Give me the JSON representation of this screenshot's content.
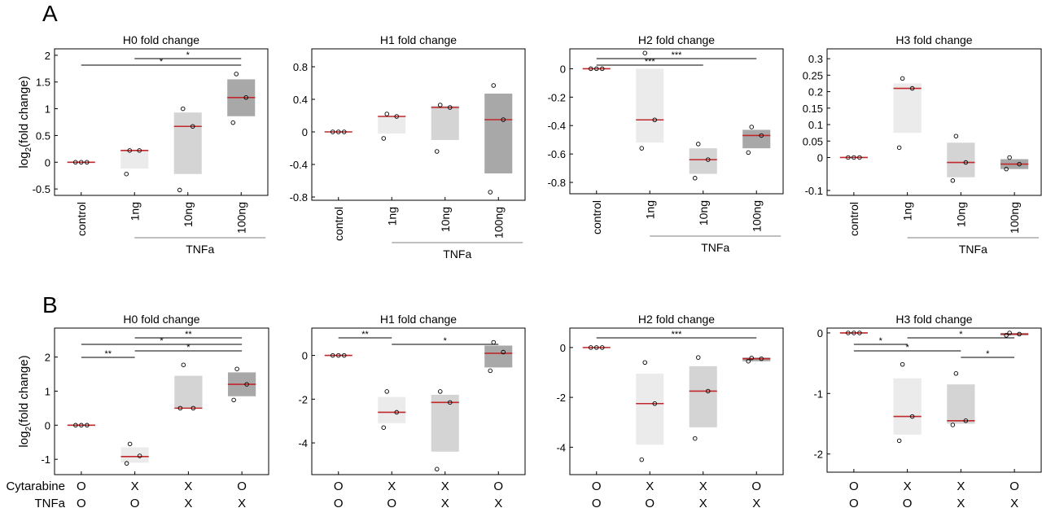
{
  "panel_labels": [
    "A",
    "B"
  ],
  "ylabel_base": "log",
  "ylabel_sub": "2",
  "ylabel_rest": "(fold change)",
  "row_a_group_label": "TNFa",
  "row_b_row_labels": [
    "Cytarabine",
    "TNFa"
  ],
  "colors": {
    "median": "#c0282b",
    "shade_light": "#ebebeb",
    "shade_mid": "#d4d4d4",
    "shade_dark": "#a8a8a8",
    "axis": "#000000"
  },
  "chart_data": [
    {
      "type": "box",
      "title": "H0 fold change",
      "ylim": [
        -0.62,
        2.12
      ],
      "ticks": [
        {
          "v": -0.5,
          "t": "-0.5"
        },
        {
          "v": 0,
          "t": "0"
        },
        {
          "v": 0.5,
          "t": "0.5"
        },
        {
          "v": 1,
          "t": "1"
        },
        {
          "v": 1.5,
          "t": "1.5"
        },
        {
          "v": 2,
          "t": "2"
        }
      ],
      "categories": [
        "control",
        "1ng",
        "10ng",
        "100ng"
      ],
      "groups": [
        {
          "box": [
            0,
            0
          ],
          "median": 0,
          "points": [
            0,
            0,
            0
          ]
        },
        {
          "box": [
            -0.12,
            0.22
          ],
          "median": 0.22,
          "points": [
            0.22,
            0.22,
            -0.22
          ]
        },
        {
          "box": [
            -0.22,
            0.93
          ],
          "median": 0.67,
          "points": [
            1.0,
            0.67,
            -0.52
          ]
        },
        {
          "box": [
            0.86,
            1.55
          ],
          "median": 1.21,
          "points": [
            1.65,
            1.21,
            0.74
          ]
        }
      ],
      "significance": [
        {
          "from": 1,
          "to": 3,
          "label": "*"
        },
        {
          "from": 0,
          "to": 3,
          "label": "*"
        }
      ]
    },
    {
      "type": "box",
      "title": "H1 fold change",
      "ylim": [
        -0.84,
        1.02
      ],
      "ticks": [
        {
          "v": -0.8,
          "t": "-0.8"
        },
        {
          "v": -0.4,
          "t": "-0.4"
        },
        {
          "v": 0,
          "t": "0"
        },
        {
          "v": 0.4,
          "t": "0.4"
        },
        {
          "v": 0.8,
          "t": "0.8"
        }
      ],
      "categories": [
        "control",
        "1ng",
        "10ng",
        "100ng"
      ],
      "groups": [
        {
          "box": [
            0,
            0
          ],
          "median": 0,
          "points": [
            0,
            0,
            0
          ]
        },
        {
          "box": [
            -0.02,
            0.19
          ],
          "median": 0.19,
          "points": [
            0.22,
            0.19,
            -0.08
          ]
        },
        {
          "box": [
            -0.1,
            0.32
          ],
          "median": 0.3,
          "points": [
            0.33,
            0.3,
            -0.24
          ]
        },
        {
          "box": [
            -0.51,
            0.47
          ],
          "median": 0.15,
          "points": [
            0.57,
            0.15,
            -0.74
          ]
        }
      ],
      "significance": []
    },
    {
      "type": "box",
      "title": "H2 fold change",
      "ylim": [
        -0.88,
        0.14
      ],
      "ticks": [
        {
          "v": -0.8,
          "t": "-0.8"
        },
        {
          "v": -0.6,
          "t": "-0.6"
        },
        {
          "v": -0.4,
          "t": "-0.4"
        },
        {
          "v": -0.2,
          "t": "-0.2"
        },
        {
          "v": 0,
          "t": "0"
        }
      ],
      "categories": [
        "control",
        "1ng",
        "10ng",
        "100ng"
      ],
      "groups": [
        {
          "box": [
            0,
            0
          ],
          "median": 0,
          "points": [
            0,
            0,
            0
          ]
        },
        {
          "box": [
            -0.52,
            0
          ],
          "median": -0.36,
          "points": [
            0.11,
            -0.36,
            -0.56
          ]
        },
        {
          "box": [
            -0.74,
            -0.56
          ],
          "median": -0.64,
          "points": [
            -0.53,
            -0.64,
            -0.77
          ]
        },
        {
          "box": [
            -0.56,
            -0.43
          ],
          "median": -0.47,
          "points": [
            -0.41,
            -0.47,
            -0.59
          ]
        }
      ],
      "significance": [
        {
          "from": 0,
          "to": 3,
          "label": "***"
        },
        {
          "from": 0,
          "to": 2,
          "label": "***"
        }
      ]
    },
    {
      "type": "box",
      "title": "H3 fold change",
      "ylim": [
        -0.115,
        0.33
      ],
      "ticks": [
        {
          "v": -0.1,
          "t": "-0.1"
        },
        {
          "v": 0,
          "t": "0"
        },
        {
          "v": 0.05,
          "t": "0.05"
        },
        {
          "v": 0.1,
          "t": "0.1"
        },
        {
          "v": 0.15,
          "t": "0.15"
        },
        {
          "v": 0.2,
          "t": "0.2"
        },
        {
          "v": 0.25,
          "t": "0.25"
        },
        {
          "v": 0.3,
          "t": "0.3"
        }
      ],
      "categories": [
        "control",
        "1ng",
        "10ng",
        "100ng"
      ],
      "groups": [
        {
          "box": [
            0,
            0
          ],
          "median": 0,
          "points": [
            0,
            0,
            0
          ]
        },
        {
          "box": [
            0.075,
            0.225
          ],
          "median": 0.21,
          "points": [
            0.24,
            0.21,
            0.03
          ]
        },
        {
          "box": [
            -0.06,
            0.045
          ],
          "median": -0.015,
          "points": [
            0.065,
            -0.015,
            -0.07
          ]
        },
        {
          "box": [
            -0.035,
            -0.005
          ],
          "median": -0.02,
          "points": [
            0,
            -0.02,
            -0.035
          ]
        }
      ],
      "significance": []
    },
    {
      "type": "box",
      "title": "H0 fold change",
      "ylim": [
        -1.45,
        2.85
      ],
      "ticks": [
        {
          "v": -1,
          "t": "-1"
        },
        {
          "v": 0,
          "t": "0"
        },
        {
          "v": 1,
          "t": "1"
        },
        {
          "v": 2,
          "t": "2"
        }
      ],
      "categories": [
        [
          "O",
          "O"
        ],
        [
          "X",
          "O"
        ],
        [
          "X",
          "X"
        ],
        [
          "O",
          "X"
        ]
      ],
      "groups": [
        {
          "box": [
            0,
            0
          ],
          "median": 0,
          "points": [
            0,
            0,
            0
          ]
        },
        {
          "box": [
            -1.1,
            -0.65
          ],
          "median": -0.92,
          "points": [
            -0.55,
            -0.9,
            -1.12
          ]
        },
        {
          "box": [
            0.5,
            1.45
          ],
          "median": 0.5,
          "points": [
            1.77,
            0.5,
            0.5
          ]
        },
        {
          "box": [
            0.85,
            1.55
          ],
          "median": 1.2,
          "points": [
            1.65,
            1.2,
            0.74
          ]
        }
      ],
      "significance": [
        {
          "from": 1,
          "to": 3,
          "label": "**"
        },
        {
          "from": 0,
          "to": 3,
          "label": "*"
        },
        {
          "from": 1,
          "to": 3,
          "label": "*"
        },
        {
          "from": 0,
          "to": 1,
          "label": "**"
        }
      ]
    },
    {
      "type": "box",
      "title": "H1 fold change",
      "ylim": [
        -5.45,
        1.25
      ],
      "ticks": [
        {
          "v": -4,
          "t": "-4"
        },
        {
          "v": -2,
          "t": "-2"
        },
        {
          "v": 0,
          "t": "0"
        }
      ],
      "categories": [
        [
          "O",
          "O"
        ],
        [
          "X",
          "O"
        ],
        [
          "X",
          "X"
        ],
        [
          "O",
          "X"
        ]
      ],
      "groups": [
        {
          "box": [
            0,
            0
          ],
          "median": 0,
          "points": [
            0,
            0,
            0
          ]
        },
        {
          "box": [
            -3.1,
            -1.9
          ],
          "median": -2.6,
          "points": [
            -1.65,
            -2.6,
            -3.3
          ]
        },
        {
          "box": [
            -4.4,
            -1.8
          ],
          "median": -2.15,
          "points": [
            -1.65,
            -2.15,
            -5.2
          ]
        },
        {
          "box": [
            -0.55,
            0.45
          ],
          "median": 0.1,
          "points": [
            0.6,
            0.15,
            -0.7
          ]
        }
      ],
      "significance": [
        {
          "from": 0,
          "to": 1,
          "label": "**"
        },
        {
          "from": 1,
          "to": 3,
          "label": "*"
        }
      ]
    },
    {
      "type": "box",
      "title": "H2 fold change",
      "ylim": [
        -5.1,
        0.78
      ],
      "ticks": [
        {
          "v": -4,
          "t": "-4"
        },
        {
          "v": -2,
          "t": "-2"
        },
        {
          "v": 0,
          "t": "0"
        }
      ],
      "categories": [
        [
          "O",
          "O"
        ],
        [
          "X",
          "O"
        ],
        [
          "X",
          "X"
        ],
        [
          "O",
          "X"
        ]
      ],
      "groups": [
        {
          "box": [
            0,
            0
          ],
          "median": 0,
          "points": [
            0,
            0,
            0
          ]
        },
        {
          "box": [
            -3.9,
            -1.05
          ],
          "median": -2.25,
          "points": [
            -0.6,
            -2.25,
            -4.5
          ]
        },
        {
          "box": [
            -3.2,
            -0.75
          ],
          "median": -1.75,
          "points": [
            -0.4,
            -1.75,
            -3.65
          ]
        },
        {
          "box": [
            -0.55,
            -0.4
          ],
          "median": -0.45,
          "points": [
            -0.42,
            -0.45,
            -0.55
          ]
        }
      ],
      "significance": [
        {
          "from": 0,
          "to": 3,
          "label": "***"
        }
      ]
    },
    {
      "type": "box",
      "title": "H3 fold change",
      "ylim": [
        -2.3,
        0.08
      ],
      "ticks": [
        {
          "v": -2,
          "t": "-2"
        },
        {
          "v": -1,
          "t": "-1"
        },
        {
          "v": 0,
          "t": "0"
        }
      ],
      "categories": [
        [
          "O",
          "O"
        ],
        [
          "X",
          "O"
        ],
        [
          "X",
          "X"
        ],
        [
          "O",
          "X"
        ]
      ],
      "groups": [
        {
          "box": [
            0,
            0
          ],
          "median": 0,
          "points": [
            0,
            0,
            0
          ]
        },
        {
          "box": [
            -1.68,
            -0.75
          ],
          "median": -1.38,
          "points": [
            -0.52,
            -1.38,
            -1.78
          ]
        },
        {
          "box": [
            -1.5,
            -0.85
          ],
          "median": -1.45,
          "points": [
            -0.67,
            -1.45,
            -1.52
          ]
        },
        {
          "box": [
            -0.04,
            0
          ],
          "median": -0.02,
          "points": [
            0,
            -0.02,
            -0.04
          ]
        }
      ],
      "significance": [
        {
          "from": 1,
          "to": 3,
          "label": "*"
        },
        {
          "from": 0,
          "to": 1,
          "label": "*"
        },
        {
          "from": 0,
          "to": 2,
          "label": "*"
        },
        {
          "from": 2,
          "to": 3,
          "label": "*"
        }
      ]
    }
  ]
}
